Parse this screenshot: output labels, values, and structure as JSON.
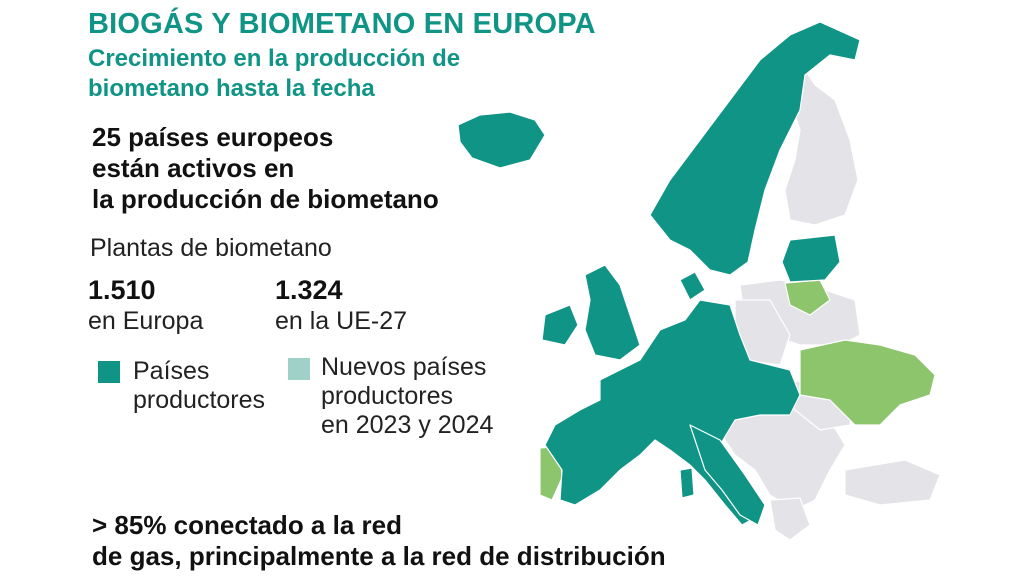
{
  "header": {
    "title": "BIOGÁS Y BIOMETANO EN EUROPA",
    "subtitle_lines": [
      "Crecimiento en la producción de",
      "biometano hasta la fecha"
    ]
  },
  "headline_lines": [
    "25 países europeos",
    "están activos en",
    "la producción de biometano"
  ],
  "plants": {
    "label": "Plantas de biometano",
    "europe": {
      "value": "1.510",
      "label": "en Europa"
    },
    "eu27": {
      "value": "1.324",
      "label": "en la UE-27"
    }
  },
  "legend": [
    {
      "lines": [
        "Países",
        "productores"
      ],
      "color": "#0f9485"
    },
    {
      "lines": [
        "Nuevos países",
        "productores",
        "en 2023 y 2024"
      ],
      "color": "#9fd1c9"
    }
  ],
  "footer_lines": [
    "> 85% conectado a la red",
    "de gas, principalmente a la red de distribución"
  ],
  "colors": {
    "accent": "#0f9485",
    "producer": "#0f9485",
    "new_producer_map": "#8cc56c",
    "non_producer": "#e3e3e8",
    "border": "#ffffff"
  }
}
